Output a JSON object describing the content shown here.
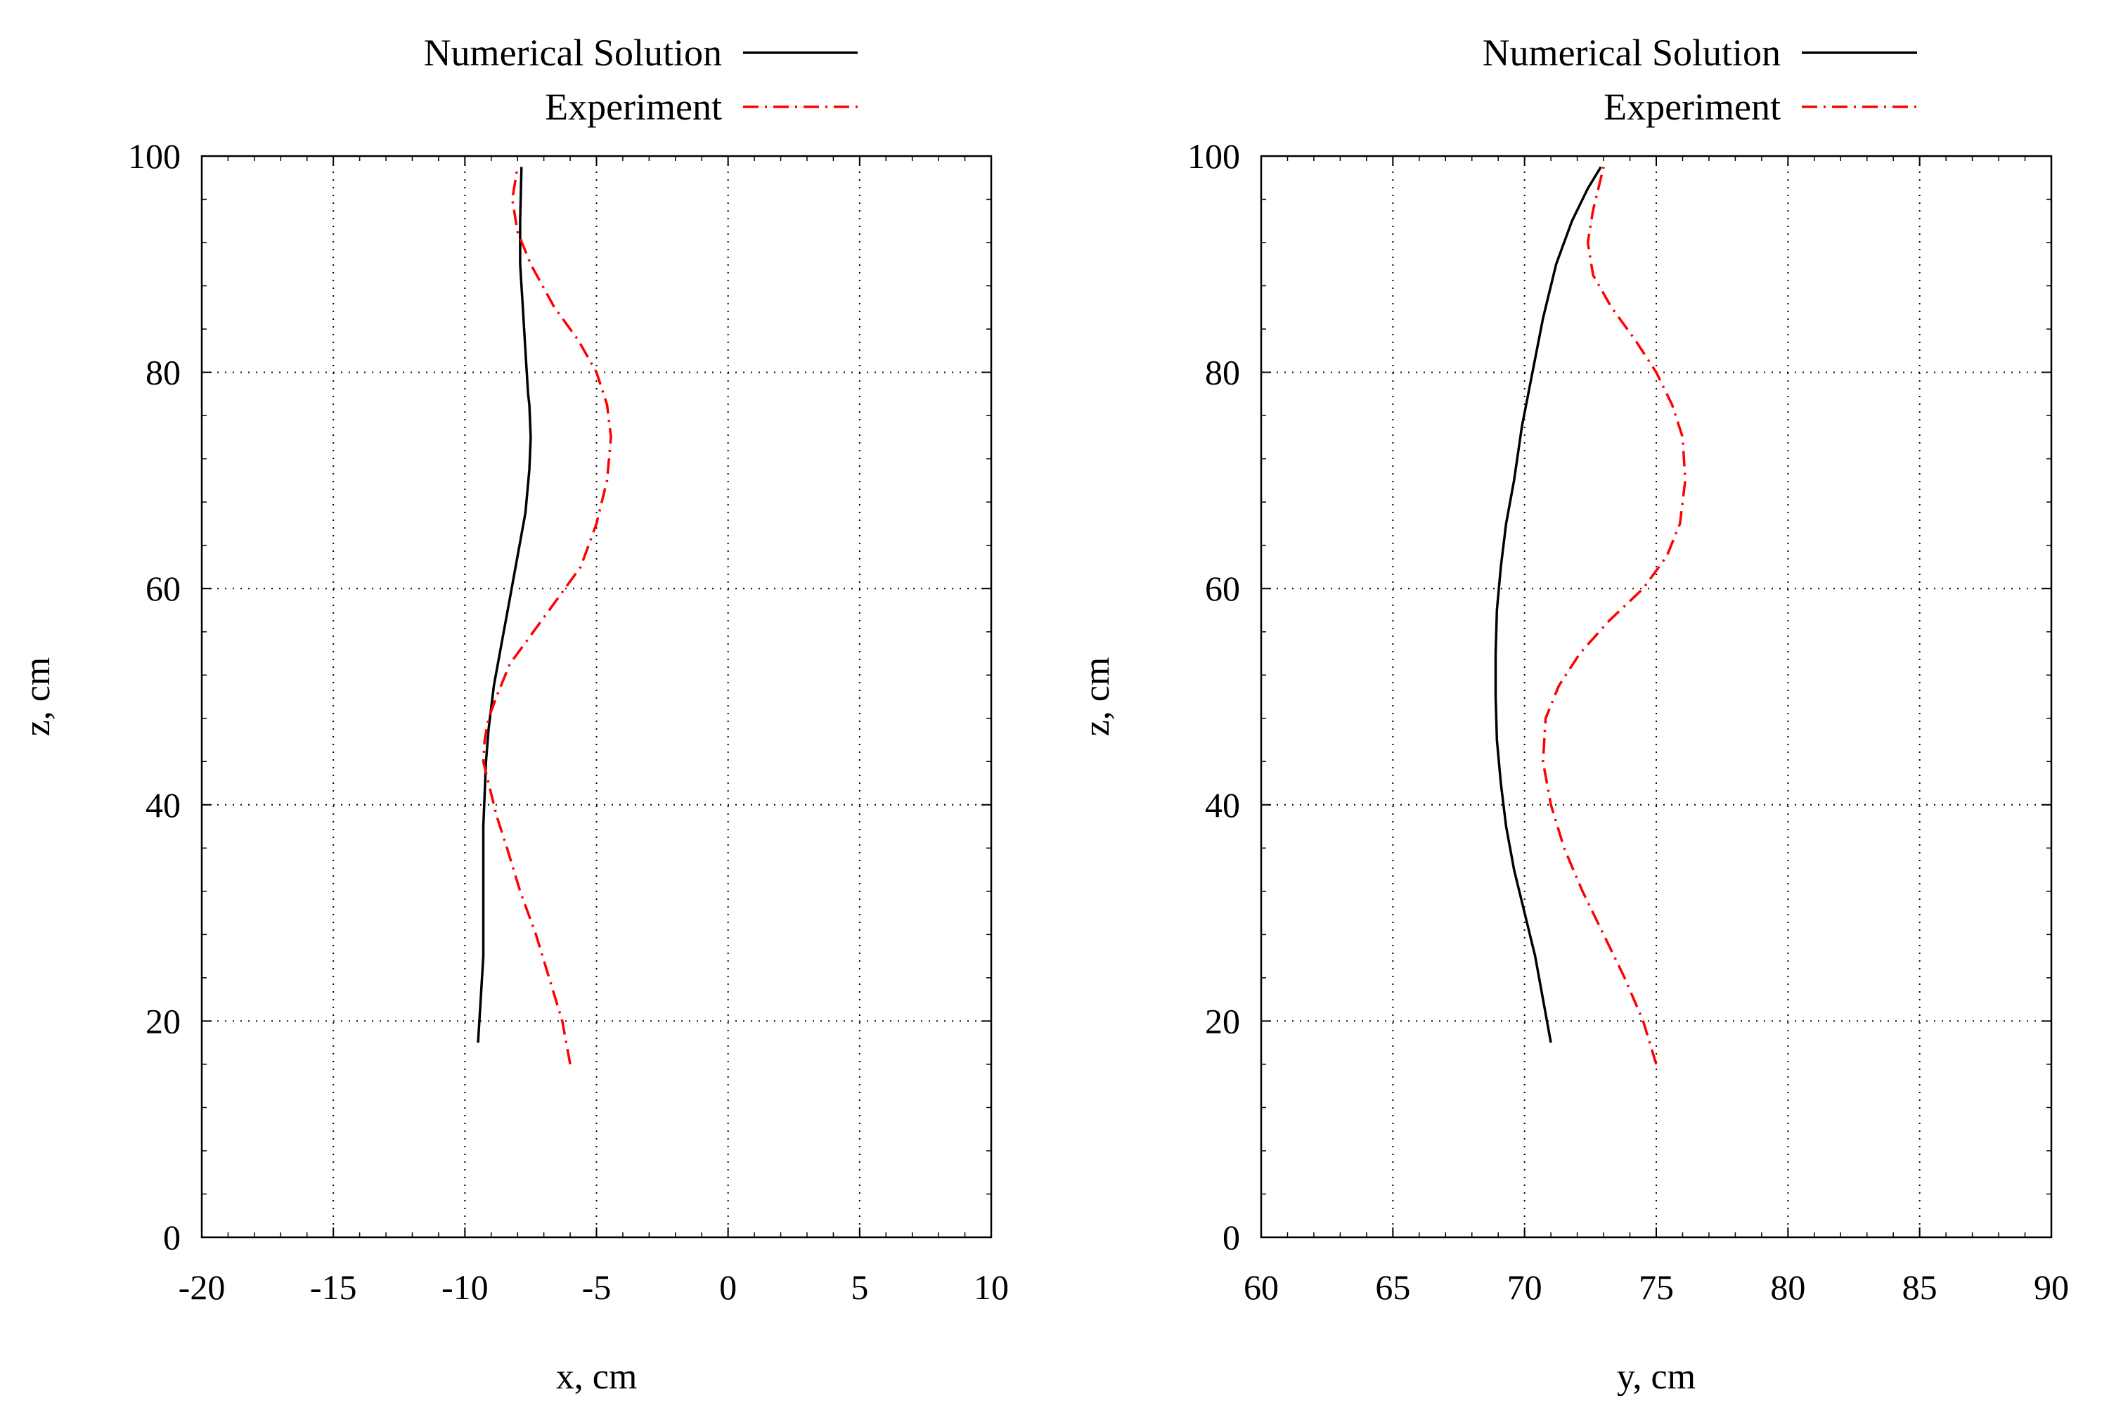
{
  "chart_data": [
    {
      "type": "line",
      "legend_position": "top",
      "xlabel": "x, cm",
      "ylabel": "z, cm",
      "xlim": [
        -20,
        10
      ],
      "ylim": [
        0,
        100
      ],
      "xticks": [
        -20,
        -15,
        -10,
        -5,
        0,
        5,
        10
      ],
      "yticks": [
        0,
        20,
        40,
        60,
        80,
        100
      ],
      "grid": true,
      "series": [
        {
          "name": "Numerical Solution",
          "style": "solid",
          "color": "#000000",
          "x": [
            -9.5,
            -9.4,
            -9.3,
            -9.3,
            -9.3,
            -9.3,
            -9.25,
            -9.2,
            -9.1,
            -8.9,
            -8.6,
            -8.3,
            -8.0,
            -7.7,
            -7.55,
            -7.5,
            -7.55,
            -7.6,
            -7.7,
            -7.8,
            -7.9,
            -7.9,
            -7.85
          ],
          "y": [
            18,
            22,
            26,
            30,
            34,
            38,
            41,
            44,
            47,
            51,
            55,
            59,
            63,
            67,
            71,
            74,
            77,
            78,
            82,
            86,
            90,
            94,
            99
          ]
        },
        {
          "name": "Experiment",
          "style": "dash-dot",
          "color": "#ff0000",
          "x": [
            -6.0,
            -6.3,
            -6.8,
            -7.3,
            -7.9,
            -8.4,
            -8.8,
            -9.1,
            -9.3,
            -9.25,
            -9.1,
            -8.8,
            -8.3,
            -7.4,
            -6.5,
            -5.6,
            -5.0,
            -4.6,
            -4.45,
            -4.6,
            -5.0,
            -5.7,
            -6.6,
            -7.5,
            -8.0,
            -8.2,
            -8.0
          ],
          "y": [
            16,
            20,
            24,
            28,
            32,
            36,
            39,
            42,
            44,
            46,
            48,
            50,
            53,
            56,
            59,
            62,
            66,
            70,
            74,
            77,
            80,
            83,
            86,
            90,
            93,
            96,
            99
          ]
        }
      ]
    },
    {
      "type": "line",
      "legend_position": "top",
      "xlabel": "y, cm",
      "ylabel": "z, cm",
      "xlim": [
        60,
        90
      ],
      "ylim": [
        0,
        100
      ],
      "xticks": [
        60,
        65,
        70,
        75,
        80,
        85,
        90
      ],
      "yticks": [
        0,
        20,
        40,
        60,
        80,
        100
      ],
      "grid": true,
      "series": [
        {
          "name": "Numerical Solution",
          "style": "solid",
          "color": "#000000",
          "x": [
            71.0,
            70.7,
            70.4,
            70.0,
            69.6,
            69.3,
            69.1,
            68.95,
            68.9,
            68.9,
            68.95,
            69.1,
            69.3,
            69.6,
            69.9,
            70.3,
            70.7,
            71.2,
            71.8,
            72.4,
            72.9
          ],
          "y": [
            18,
            22,
            26,
            30,
            34,
            38,
            42,
            46,
            50,
            54,
            58,
            62,
            66,
            70,
            75,
            80,
            85,
            90,
            94,
            97,
            99
          ]
        },
        {
          "name": "Experiment",
          "style": "dash-dot",
          "color": "#ff0000",
          "x": [
            75.0,
            74.5,
            73.8,
            73.0,
            72.2,
            71.5,
            71.0,
            70.7,
            70.8,
            71.3,
            72.1,
            73.2,
            74.5,
            75.4,
            75.9,
            76.1,
            76.0,
            75.6,
            75.0,
            74.2,
            73.3,
            72.6,
            72.4,
            72.6,
            73.0
          ],
          "y": [
            16,
            20,
            24,
            28,
            32,
            36,
            40,
            44,
            48,
            51,
            54,
            57,
            60,
            63,
            66,
            70,
            74,
            77,
            80,
            83,
            86,
            89,
            92,
            95,
            99
          ]
        }
      ]
    }
  ]
}
